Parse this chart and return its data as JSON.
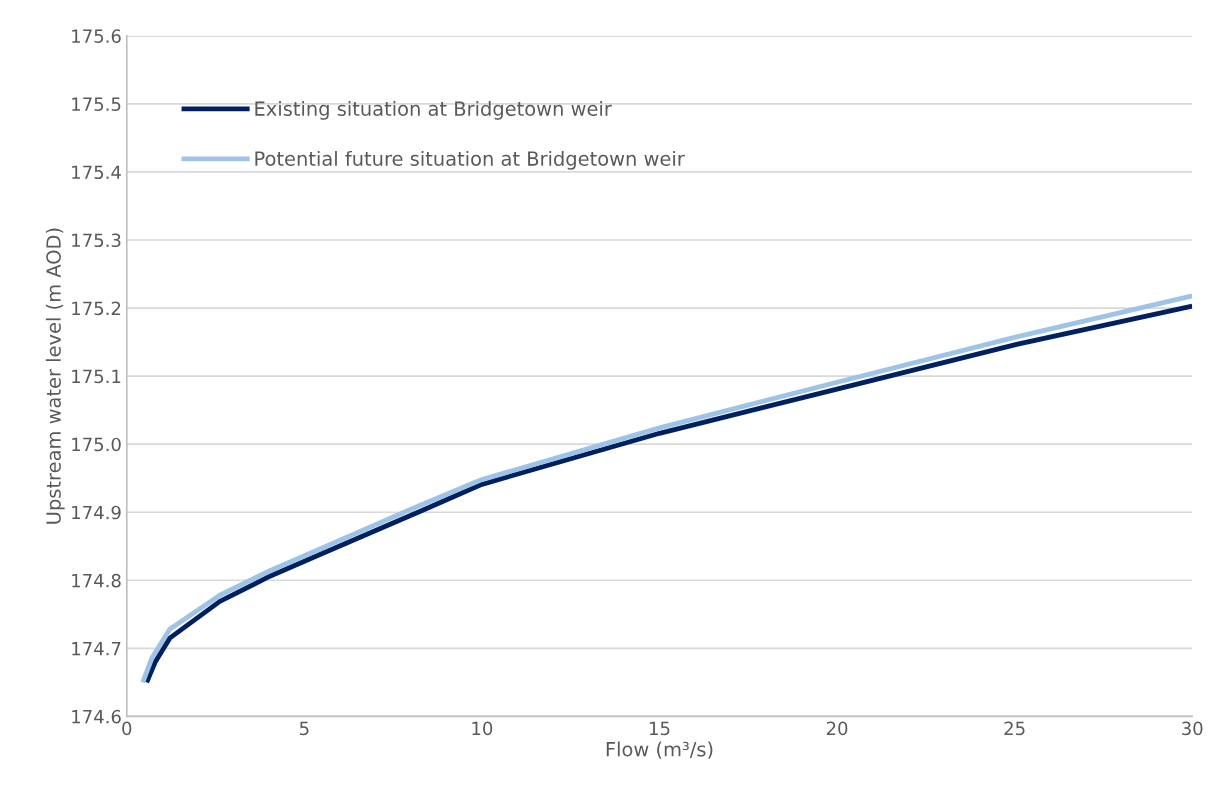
{
  "chart_data": {
    "type": "line",
    "xlabel": "Flow (m³/s)",
    "ylabel": "Upstream water level (m AOD)",
    "xlim": [
      0,
      30
    ],
    "xticks": [
      0,
      5,
      10,
      15,
      20,
      25,
      30
    ],
    "ylim": [
      174.6,
      175.6
    ],
    "yticks": [
      174.6,
      174.7,
      174.8,
      174.9,
      {
        "value": 175.0,
        "label": "175.0"
      },
      175.1,
      175.2,
      175.3,
      175.4,
      175.5,
      175.6
    ],
    "grid": "y",
    "legend": "top left",
    "marker": "none",
    "line_style": "solid",
    "series": [
      {
        "name": "Existing situation at Bridgetown weir",
        "color": "#002060",
        "x": [
          0.56,
          0.8,
          1.21,
          2.62,
          4.03,
          5.44,
          8.25,
          10,
          15,
          20,
          25,
          30
        ],
        "values": [
          174.65,
          174.68,
          174.715,
          174.769,
          174.806,
          174.838,
          174.901,
          174.941,
          175.016,
          175.081,
          175.146,
          175.203
        ]
      },
      {
        "name": "Potential future situation at Bridgetown weir",
        "color": "#9dc3e6",
        "x": [
          0.45,
          0.7,
          1.21,
          2.62,
          4.03,
          5.44,
          8.25,
          10,
          15,
          20,
          25,
          30
        ],
        "values": [
          174.65,
          174.685,
          174.728,
          174.778,
          174.814,
          174.846,
          174.91,
          174.948,
          175.024,
          175.091,
          175.157,
          175.218
        ]
      }
    ]
  }
}
